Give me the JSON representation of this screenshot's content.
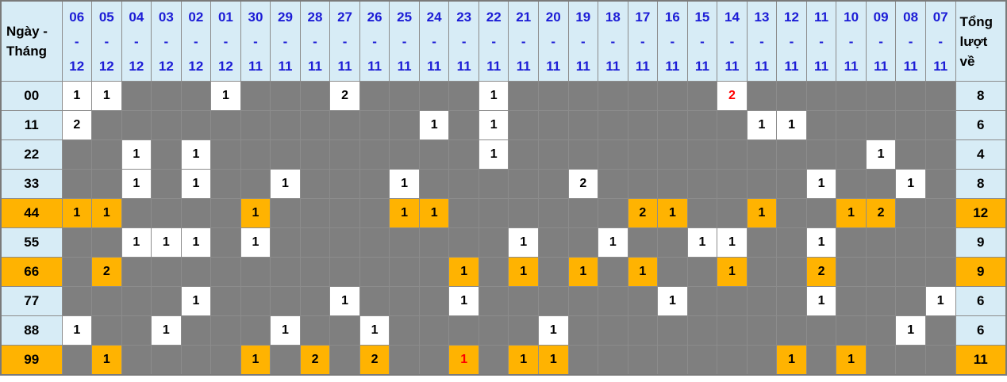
{
  "table": {
    "corner_label_lines": [
      "Ngày -",
      "Tháng"
    ],
    "total_header_lines": [
      "Tổng",
      "lượt",
      "về"
    ],
    "separator": "-",
    "columns": [
      {
        "day": "06",
        "month": "12"
      },
      {
        "day": "05",
        "month": "12"
      },
      {
        "day": "04",
        "month": "12"
      },
      {
        "day": "03",
        "month": "12"
      },
      {
        "day": "02",
        "month": "12"
      },
      {
        "day": "01",
        "month": "12"
      },
      {
        "day": "30",
        "month": "11"
      },
      {
        "day": "29",
        "month": "11"
      },
      {
        "day": "28",
        "month": "11"
      },
      {
        "day": "27",
        "month": "11"
      },
      {
        "day": "26",
        "month": "11"
      },
      {
        "day": "25",
        "month": "11"
      },
      {
        "day": "24",
        "month": "11"
      },
      {
        "day": "23",
        "month": "11"
      },
      {
        "day": "22",
        "month": "11"
      },
      {
        "day": "21",
        "month": "11"
      },
      {
        "day": "20",
        "month": "11"
      },
      {
        "day": "19",
        "month": "11"
      },
      {
        "day": "18",
        "month": "11"
      },
      {
        "day": "17",
        "month": "11"
      },
      {
        "day": "16",
        "month": "11"
      },
      {
        "day": "15",
        "month": "11"
      },
      {
        "day": "14",
        "month": "11"
      },
      {
        "day": "13",
        "month": "11"
      },
      {
        "day": "12",
        "month": "11"
      },
      {
        "day": "11",
        "month": "11"
      },
      {
        "day": "10",
        "month": "11"
      },
      {
        "day": "09",
        "month": "11"
      },
      {
        "day": "08",
        "month": "11"
      },
      {
        "day": "07",
        "month": "11"
      }
    ],
    "rows": [
      {
        "label": "00",
        "highlight": false,
        "total": 8,
        "cells": [
          1,
          1,
          0,
          0,
          0,
          1,
          0,
          0,
          0,
          2,
          0,
          0,
          0,
          0,
          1,
          0,
          0,
          0,
          0,
          0,
          0,
          0,
          2,
          0,
          0,
          0,
          0,
          0,
          0,
          0
        ],
        "red": [
          22
        ]
      },
      {
        "label": "11",
        "highlight": false,
        "total": 6,
        "cells": [
          2,
          0,
          0,
          0,
          0,
          0,
          0,
          0,
          0,
          0,
          0,
          0,
          1,
          0,
          1,
          0,
          0,
          0,
          0,
          0,
          0,
          0,
          0,
          1,
          1,
          0,
          0,
          0,
          0,
          0
        ],
        "red": []
      },
      {
        "label": "22",
        "highlight": false,
        "total": 4,
        "cells": [
          0,
          0,
          1,
          0,
          1,
          0,
          0,
          0,
          0,
          0,
          0,
          0,
          0,
          0,
          1,
          0,
          0,
          0,
          0,
          0,
          0,
          0,
          0,
          0,
          0,
          0,
          0,
          1,
          0,
          0
        ],
        "red": []
      },
      {
        "label": "33",
        "highlight": false,
        "total": 8,
        "cells": [
          0,
          0,
          1,
          0,
          1,
          0,
          0,
          1,
          0,
          0,
          0,
          1,
          0,
          0,
          0,
          0,
          0,
          2,
          0,
          0,
          0,
          0,
          0,
          0,
          0,
          1,
          0,
          0,
          1,
          0
        ],
        "red": []
      },
      {
        "label": "44",
        "highlight": true,
        "total": 12,
        "cells": [
          1,
          1,
          0,
          0,
          0,
          0,
          1,
          0,
          0,
          0,
          0,
          1,
          1,
          0,
          0,
          0,
          0,
          0,
          0,
          2,
          1,
          0,
          0,
          1,
          0,
          0,
          1,
          2,
          0,
          0
        ],
        "red": []
      },
      {
        "label": "55",
        "highlight": false,
        "total": 9,
        "cells": [
          0,
          0,
          1,
          1,
          1,
          0,
          1,
          0,
          0,
          0,
          0,
          0,
          0,
          0,
          0,
          1,
          0,
          0,
          1,
          0,
          0,
          1,
          1,
          0,
          0,
          1,
          0,
          0,
          0,
          0
        ],
        "red": []
      },
      {
        "label": "66",
        "highlight": true,
        "total": 9,
        "cells": [
          0,
          2,
          0,
          0,
          0,
          0,
          0,
          0,
          0,
          0,
          0,
          0,
          0,
          1,
          0,
          1,
          0,
          1,
          0,
          1,
          0,
          0,
          1,
          0,
          0,
          2,
          0,
          0,
          0,
          0
        ],
        "red": []
      },
      {
        "label": "77",
        "highlight": false,
        "total": 6,
        "cells": [
          0,
          0,
          0,
          0,
          1,
          0,
          0,
          0,
          0,
          1,
          0,
          0,
          0,
          1,
          0,
          0,
          0,
          0,
          0,
          0,
          1,
          0,
          0,
          0,
          0,
          1,
          0,
          0,
          0,
          1
        ],
        "red": []
      },
      {
        "label": "88",
        "highlight": false,
        "total": 6,
        "cells": [
          1,
          0,
          0,
          1,
          0,
          0,
          0,
          1,
          0,
          0,
          1,
          0,
          0,
          0,
          0,
          0,
          1,
          0,
          0,
          0,
          0,
          0,
          0,
          0,
          0,
          0,
          0,
          0,
          1,
          0
        ],
        "red": []
      },
      {
        "label": "99",
        "highlight": true,
        "total": 11,
        "cells": [
          0,
          1,
          0,
          0,
          0,
          0,
          1,
          0,
          2,
          0,
          2,
          0,
          0,
          1,
          0,
          1,
          1,
          0,
          0,
          0,
          0,
          0,
          0,
          0,
          1,
          0,
          1,
          0,
          0,
          0
        ],
        "red": [
          13
        ]
      }
    ]
  },
  "colors": {
    "header_bg": "#d7ecf6",
    "header_text": "#1c1cd6",
    "empty_cell": "#7f7f7f",
    "highlight": "#ffb301",
    "red_text": "#ff0000",
    "grid": "#8c8c8c"
  }
}
